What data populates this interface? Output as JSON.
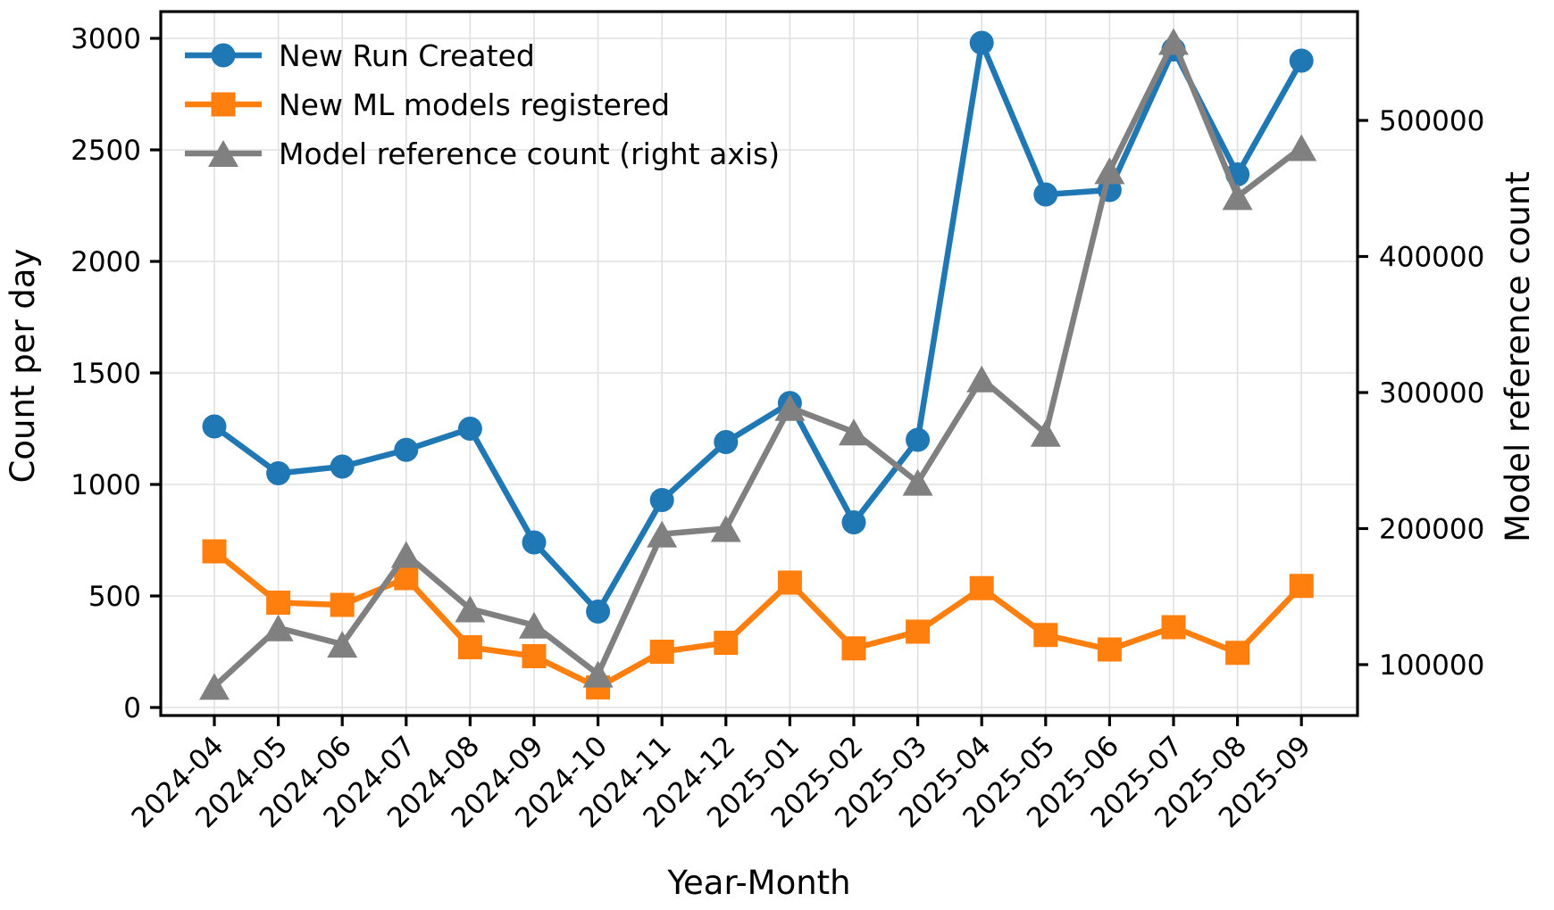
{
  "figure": {
    "xlabel": "Year-Month",
    "background": "#ffffff",
    "spine_color": "#000000",
    "grid_color": "#e0e0e0"
  },
  "legend": {
    "position": "upper-left",
    "items": [
      {
        "label": "New Run Created",
        "marker": "circle-marker-icon",
        "color": "#1f77b4"
      },
      {
        "label": "New ML models registered",
        "marker": "square-marker-icon",
        "color": "#ff7f0e"
      },
      {
        "label": "Model reference count (right axis)",
        "marker": "triangle-marker-icon",
        "color": "#808080"
      }
    ]
  },
  "chart_data": {
    "type": "line",
    "title": "",
    "xlabel": "Year-Month",
    "categories": [
      "2024-04",
      "2024-05",
      "2024-06",
      "2024-07",
      "2024-08",
      "2024-09",
      "2024-10",
      "2024-11",
      "2024-12",
      "2025-01",
      "2025-02",
      "2025-03",
      "2025-04",
      "2025-05",
      "2025-06",
      "2025-07",
      "2025-08",
      "2025-09"
    ],
    "series": [
      {
        "name": "New Run Created",
        "axis": "left",
        "marker": "circle",
        "color": "#1f77b4",
        "values": [
          1260,
          1050,
          1080,
          1155,
          1250,
          740,
          430,
          930,
          1190,
          1365,
          830,
          1200,
          2980,
          2300,
          2320,
          2950,
          2390,
          2900
        ]
      },
      {
        "name": "New ML models registered",
        "axis": "left",
        "marker": "square",
        "color": "#ff7f0e",
        "values": [
          700,
          470,
          460,
          580,
          270,
          230,
          90,
          250,
          290,
          560,
          265,
          340,
          535,
          325,
          260,
          360,
          245,
          545
        ]
      },
      {
        "name": "Model reference count (right axis)",
        "axis": "right",
        "marker": "triangle",
        "color": "#808080",
        "values": [
          84000,
          127000,
          115000,
          181000,
          141000,
          129000,
          93000,
          196000,
          200000,
          289000,
          271000,
          234000,
          310000,
          270000,
          463000,
          558000,
          444000,
          480000
        ]
      }
    ],
    "left_axis": {
      "label": "Count per day",
      "ticks": [
        0,
        500,
        1000,
        1500,
        2000,
        2500,
        3000
      ],
      "range": [
        -36,
        3120
      ]
    },
    "right_axis": {
      "label": "Model reference count",
      "ticks": [
        100000,
        200000,
        300000,
        400000,
        500000
      ],
      "range": [
        62600,
        580000
      ]
    },
    "grid": true,
    "legend_position": "upper left"
  }
}
